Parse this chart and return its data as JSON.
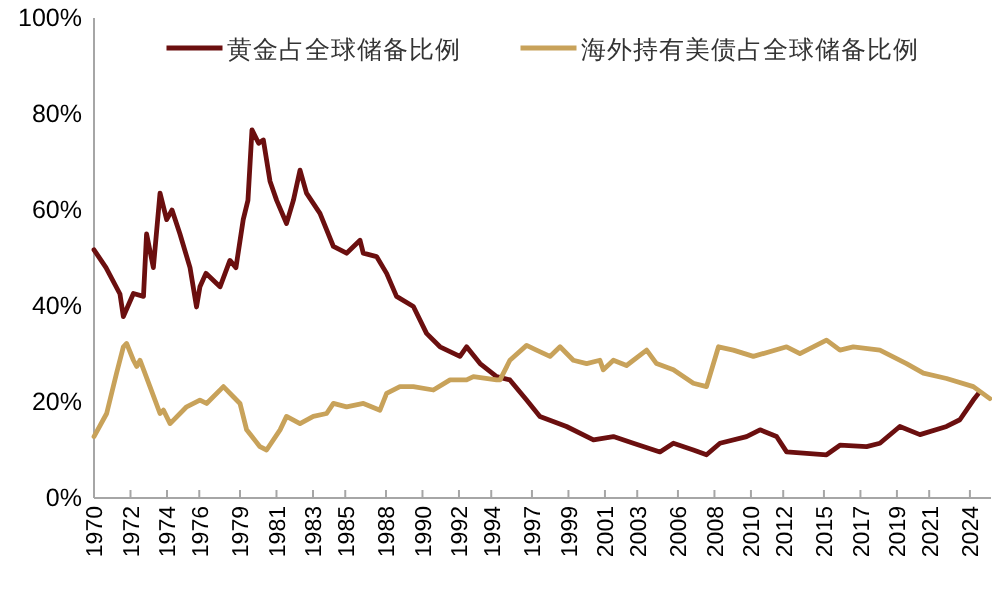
{
  "chart_data": {
    "type": "line",
    "legend": "top",
    "xlim": [
      1970,
      2025.3
    ],
    "ylim": [
      0,
      100
    ],
    "yticks": [
      {
        "value": 0,
        "label": "0%"
      },
      {
        "value": 20,
        "label": "20%"
      },
      {
        "value": 40,
        "label": "40%"
      },
      {
        "value": 60,
        "label": "60%"
      },
      {
        "value": 80,
        "label": "80%"
      },
      {
        "value": 100,
        "label": "100%"
      }
    ],
    "xticks": [
      {
        "value": 1970,
        "label": "1970"
      },
      {
        "value": 1972.25,
        "label": "1972"
      },
      {
        "value": 1974.5,
        "label": "1974"
      },
      {
        "value": 1976.49,
        "label": "1976"
      },
      {
        "value": 1979,
        "label": "1979"
      },
      {
        "value": 1981.25,
        "label": "1981"
      },
      {
        "value": 1983.5,
        "label": "1983"
      },
      {
        "value": 1985.49,
        "label": "1985"
      },
      {
        "value": 1988,
        "label": "1988"
      },
      {
        "value": 1990.25,
        "label": "1990"
      },
      {
        "value": 1992.5,
        "label": "1992"
      },
      {
        "value": 1994.49,
        "label": "1994"
      },
      {
        "value": 1997,
        "label": "1997"
      },
      {
        "value": 1999.25,
        "label": "1999"
      },
      {
        "value": 2001.5,
        "label": "2001"
      },
      {
        "value": 2003.49,
        "label": "2003"
      },
      {
        "value": 2006,
        "label": "2006"
      },
      {
        "value": 2008.25,
        "label": "2008"
      },
      {
        "value": 2010.5,
        "label": "2010"
      },
      {
        "value": 2012.49,
        "label": "2012"
      },
      {
        "value": 2015,
        "label": "2015"
      },
      {
        "value": 2017.25,
        "label": "2017"
      },
      {
        "value": 2019.5,
        "label": "2019"
      },
      {
        "value": 2021.49,
        "label": "2021"
      },
      {
        "value": 2024,
        "label": "2024"
      }
    ],
    "series": [
      {
        "name": "黄金占全球储备比例",
        "color": "#6b0f0f",
        "x": [
          1970.0,
          1970.74,
          1971.6,
          1971.81,
          1972.43,
          1973.05,
          1973.24,
          1973.66,
          1974.07,
          1974.48,
          1974.81,
          1975.3,
          1975.92,
          1976.32,
          1976.53,
          1976.9,
          1977.77,
          1978.38,
          1978.75,
          1979.2,
          1979.49,
          1979.74,
          1980.15,
          1980.44,
          1980.85,
          1981.26,
          1981.87,
          1982.29,
          1982.7,
          1983.1,
          1983.93,
          1984.76,
          1985.57,
          1986.4,
          1986.6,
          1987.42,
          1988.04,
          1988.65,
          1989.69,
          1990.5,
          1991.33,
          1992.56,
          1992.97,
          1993.8,
          1994.82,
          1995.64,
          1996.67,
          1997.49,
          1999.13,
          2000.79,
          2002.02,
          2003.25,
          2004.89,
          2005.72,
          2006.95,
          2007.76,
          2008.59,
          2010.23,
          2011.06,
          2012.08,
          2012.7,
          2015.16,
          2015.99,
          2017.63,
          2018.45,
          2019.68,
          2020.92,
          2022.56,
          2023.38,
          2024.21,
          2024.53
        ],
        "values": [
          51.7,
          48,
          42.5,
          37.8,
          42.6,
          42,
          55,
          48,
          63.5,
          58,
          60,
          55,
          48,
          39.8,
          44,
          46.8,
          44,
          49.5,
          48,
          58,
          62,
          76.7,
          73.9,
          74.6,
          66,
          62,
          57.2,
          62,
          68.3,
          63.5,
          59.3,
          52.4,
          51,
          53.7,
          51,
          50.3,
          46.8,
          42,
          39.9,
          34.3,
          31.5,
          29.5,
          31.5,
          28,
          25.3,
          24.6,
          20.4,
          17,
          14.9,
          12.1,
          12.8,
          11.4,
          9.6,
          11.4,
          10,
          9,
          11.4,
          12.8,
          14.2,
          12.8,
          9.6,
          9,
          11,
          10.7,
          11.4,
          14.9,
          13.2,
          14.9,
          16.3,
          20.4,
          21.8
        ]
      },
      {
        "name": "海外持有美债占全球储备比例",
        "color": "#c8a25a",
        "x": [
          1970.0,
          1970.78,
          1971.39,
          1971.81,
          1972.01,
          1972.43,
          1972.63,
          1972.84,
          1973.45,
          1974.07,
          1974.28,
          1974.69,
          1975.71,
          1976.53,
          1976.94,
          1977.98,
          1978.59,
          1979.0,
          1979.41,
          1980.23,
          1980.64,
          1981.47,
          1981.87,
          1982.7,
          1983.52,
          1984.34,
          1984.76,
          1985.57,
          1986.61,
          1987.63,
          1988.04,
          1988.86,
          1989.69,
          1990.92,
          1991.95,
          1992.97,
          1993.39,
          1994.82,
          1995.03,
          1995.64,
          1996.67,
          1997.28,
          1998.11,
          1998.73,
          1999.55,
          2000.37,
          2001.19,
          2001.4,
          2002.02,
          2002.83,
          2004.07,
          2004.68,
          2005.72,
          2006.95,
          2007.76,
          2008.5,
          2009.41,
          2010.65,
          2012.7,
          2013.52,
          2015.16,
          2015.99,
          2016.81,
          2018.45,
          2020.09,
          2021.13,
          2022.56,
          2024.21,
          2025.23
        ],
        "values": [
          12.8,
          17.6,
          26,
          31.5,
          32.2,
          28.7,
          27.4,
          28.7,
          23.2,
          17.6,
          18.3,
          15.5,
          19,
          20.4,
          19.7,
          23.2,
          21.1,
          19.7,
          14.2,
          10.7,
          10,
          14.2,
          17,
          15.5,
          17,
          17.6,
          19.7,
          19,
          19.7,
          18.3,
          21.8,
          23.2,
          23.2,
          22.5,
          24.6,
          24.6,
          25.3,
          24.6,
          24.6,
          28.7,
          31.8,
          30.8,
          29.5,
          31.5,
          28.7,
          28,
          28.7,
          26.7,
          28.7,
          27.6,
          30.8,
          28,
          26.7,
          23.9,
          23.2,
          31.5,
          30.8,
          29.5,
          31.5,
          30.1,
          32.9,
          30.8,
          31.5,
          30.8,
          28,
          26,
          24.9,
          23.2,
          20.7
        ]
      }
    ]
  }
}
